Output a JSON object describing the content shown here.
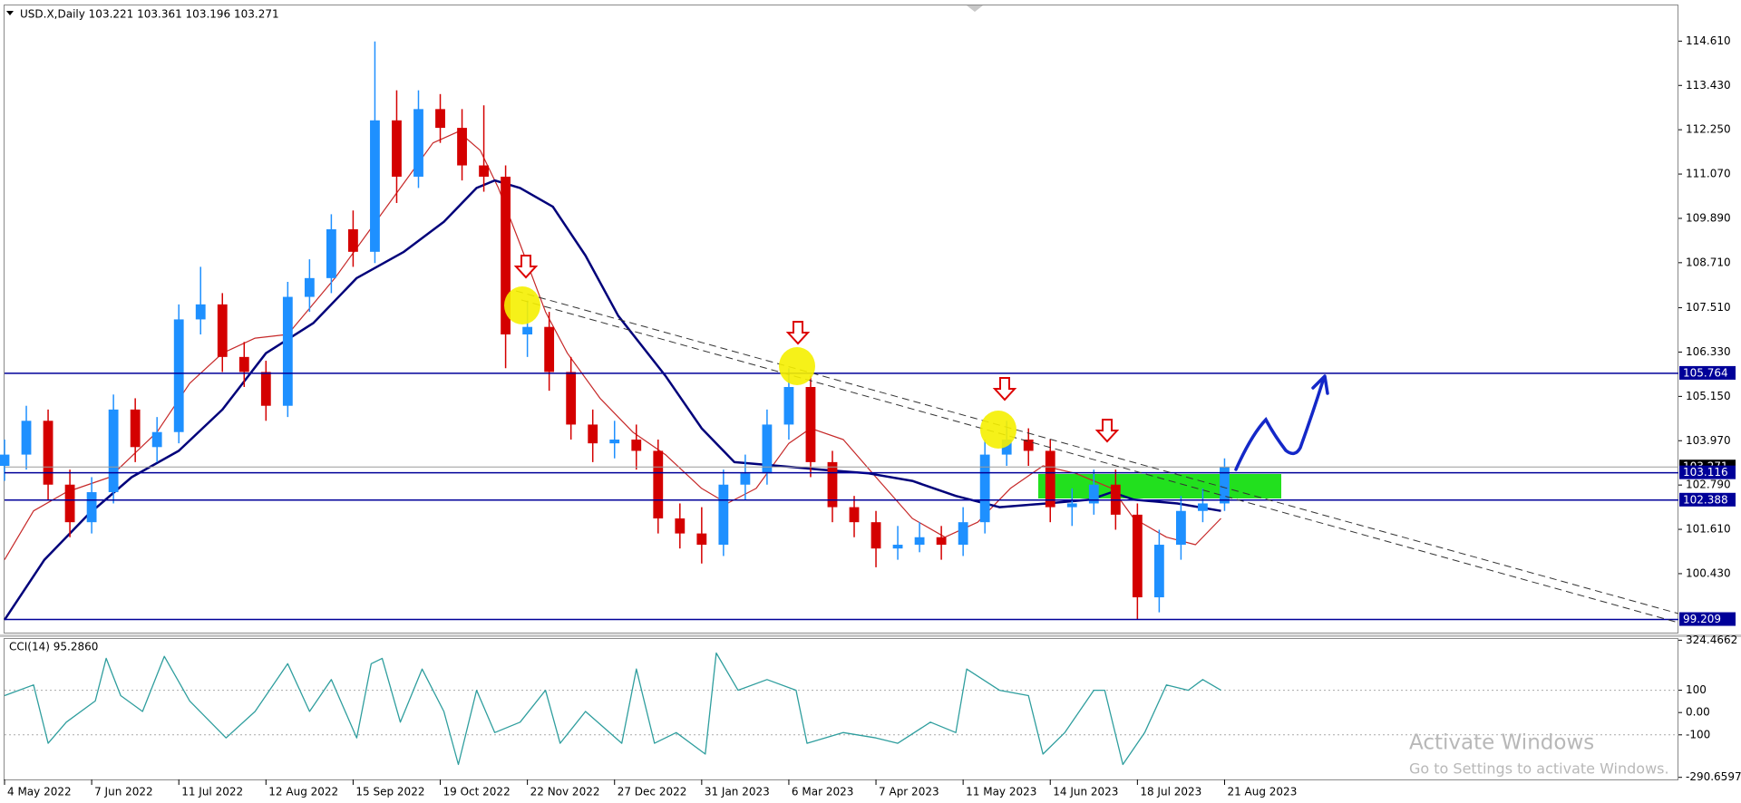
{
  "chart_data": [
    {
      "type": "candlestick",
      "title": "USD.X,Daily  103.221 103.361 103.196 103.271",
      "x": [
        0,
        6,
        12,
        18,
        24,
        30,
        36,
        42,
        48,
        54,
        60,
        66,
        72,
        78,
        84,
        90,
        96,
        102,
        108,
        114,
        120,
        126,
        132,
        138,
        144,
        150,
        156,
        162,
        168,
        174,
        180,
        186,
        192,
        198,
        204,
        210,
        216,
        222,
        228,
        234,
        240,
        246,
        252,
        258,
        264,
        270,
        276,
        282,
        288,
        294,
        300,
        306,
        312,
        318,
        324,
        330,
        336
      ],
      "open": [
        103.3,
        103.6,
        104.5,
        102.8,
        101.8,
        102.6,
        104.8,
        103.8,
        104.2,
        107.2,
        107.6,
        106.2,
        105.8,
        104.9,
        107.8,
        108.3,
        109.6,
        109,
        112.5,
        111,
        112.8,
        112.3,
        111.3,
        111,
        106.8,
        107,
        105.8,
        104.4,
        103.9,
        104,
        103.7,
        101.9,
        101.5,
        101.2,
        102.8,
        103.1,
        104.4,
        105.4,
        103.4,
        102.2,
        101.8,
        101.1,
        101.2,
        101.4,
        101.2,
        101.8,
        103.6,
        104,
        103.7,
        102.2,
        102.3,
        102.8,
        102,
        99.8,
        101.2,
        102.1,
        102.3
      ],
      "high": [
        104,
        104.9,
        104.8,
        103.2,
        103,
        105.2,
        105.1,
        104.6,
        107.6,
        108.6,
        107.9,
        106.6,
        106.1,
        108.2,
        108.8,
        110,
        110.1,
        114.6,
        113.3,
        113.3,
        113.2,
        112.8,
        112.9,
        111.3,
        107.7,
        107.4,
        106.2,
        104.8,
        104.5,
        104.4,
        104,
        102.3,
        102.2,
        103.2,
        103.6,
        104.8,
        105.9,
        105.7,
        103.7,
        102.5,
        102.1,
        101.7,
        101.8,
        101.7,
        102.2,
        104,
        104.5,
        104.3,
        104,
        102.7,
        103.2,
        103.2,
        102.3,
        101.6,
        102.5,
        102.7,
        103.5
      ],
      "low": [
        102.9,
        103.2,
        102.4,
        101.4,
        101.5,
        102.3,
        103.4,
        103.4,
        103.9,
        106.8,
        105.8,
        105.4,
        104.5,
        104.6,
        107.4,
        107.9,
        108.6,
        108.7,
        110.3,
        110.7,
        111.9,
        110.9,
        110.6,
        105.9,
        106.2,
        105.3,
        104,
        103.4,
        103.5,
        103.2,
        101.5,
        101.1,
        100.7,
        100.9,
        102.4,
        102.8,
        104,
        103,
        101.8,
        101.4,
        100.6,
        100.8,
        101,
        100.8,
        100.9,
        101.5,
        103.3,
        103.3,
        101.8,
        101.7,
        102,
        101.6,
        99.2,
        99.4,
        100.8,
        101.8,
        102.1
      ],
      "close": [
        103.6,
        104.5,
        102.8,
        101.8,
        102.6,
        104.8,
        103.8,
        104.2,
        107.2,
        107.6,
        106.2,
        105.8,
        104.9,
        107.8,
        108.3,
        109.6,
        109,
        112.5,
        111,
        112.8,
        112.3,
        111.3,
        111,
        106.8,
        107,
        105.8,
        104.4,
        103.9,
        104,
        103.7,
        101.9,
        101.5,
        101.2,
        102.8,
        103.1,
        104.4,
        105.4,
        103.4,
        102.2,
        101.8,
        101.1,
        101.2,
        101.4,
        101.2,
        101.8,
        103.6,
        104,
        103.7,
        102.2,
        102.3,
        102.8,
        102,
        99.8,
        101.2,
        102.1,
        102.3,
        103.27
      ],
      "up_color": "#1e90ff",
      "down_color": "#d40000",
      "series": [
        {
          "color": "#c62828",
          "x": [
            0,
            8,
            17,
            29,
            42,
            51,
            60,
            69,
            78,
            91,
            100,
            109,
            118,
            125,
            131,
            136,
            142,
            149,
            155,
            164,
            173,
            182,
            192,
            199,
            207,
            216,
            222,
            231,
            240,
            250,
            259,
            268,
            277,
            286,
            295,
            305,
            311,
            320,
            328,
            335
          ],
          "values": [
            100.8,
            102.1,
            102.6,
            103,
            104.2,
            105.5,
            106.3,
            106.7,
            106.8,
            108.3,
            109.5,
            110.7,
            111.9,
            112.2,
            111.7,
            110.7,
            109.2,
            107.4,
            106.3,
            105.1,
            104.2,
            103.6,
            102.7,
            102.3,
            102.7,
            103.9,
            104.3,
            104,
            103,
            101.9,
            101.4,
            101.8,
            102.7,
            103.3,
            103.1,
            102.7,
            101.9,
            101.4,
            101.2,
            101.9
          ]
        },
        {
          "color": "#00007a",
          "x": [
            0,
            11,
            23,
            35,
            48,
            60,
            72,
            85,
            97,
            110,
            121,
            130,
            135,
            142,
            151,
            160,
            169,
            182,
            192,
            201,
            213,
            225,
            238,
            250,
            262,
            274,
            287,
            299,
            305,
            311,
            323,
            335
          ],
          "values": [
            99.2,
            100.8,
            102,
            103,
            103.7,
            104.8,
            106.3,
            107.1,
            108.3,
            109,
            109.8,
            110.7,
            110.9,
            110.7,
            110.2,
            108.9,
            107.3,
            105.7,
            104.3,
            103.4,
            103.3,
            103.2,
            103.1,
            102.9,
            102.5,
            102.2,
            102.3,
            102.4,
            102.6,
            102.4,
            102.3,
            102.1
          ]
        }
      ],
      "levels": [
        105.764,
        103.116,
        102.388,
        99.209
      ],
      "level_color": "#000099",
      "last_price": 103.271,
      "last_price_color": "#9a9a9a",
      "xlim": [
        0,
        461
      ],
      "xticks": [
        {
          "value": 0,
          "label": "4 May 2022"
        },
        {
          "value": 24,
          "label": "7 Jun 2022"
        },
        {
          "value": 48,
          "label": "11 Jul 2022"
        },
        {
          "value": 72,
          "label": "12 Aug 2022"
        },
        {
          "value": 96,
          "label": "15 Sep 2022"
        },
        {
          "value": 120,
          "label": "19 Oct 2022"
        },
        {
          "value": 144,
          "label": "22 Nov 2022"
        },
        {
          "value": 168,
          "label": "27 Dec 2022"
        },
        {
          "value": 192,
          "label": "31 Jan 2023"
        },
        {
          "value": 216,
          "label": "6 Mar 2023"
        },
        {
          "value": 240,
          "label": "7 Apr 2023"
        },
        {
          "value": 264,
          "label": "11 May 2023"
        },
        {
          "value": 288,
          "label": "14 Jun 2023"
        },
        {
          "value": 312,
          "label": "18 Jul 2023"
        },
        {
          "value": 336,
          "label": "21 Aug 2023"
        }
      ],
      "ylim": [
        98.86,
        115.56
      ],
      "yticks": [
        {
          "value": 114.61,
          "label": "114.610"
        },
        {
          "value": 113.43,
          "label": "113.430"
        },
        {
          "value": 112.25,
          "label": "112.250"
        },
        {
          "value": 111.07,
          "label": "111.070"
        },
        {
          "value": 109.89,
          "label": "109.890"
        },
        {
          "value": 108.71,
          "label": "108.710"
        },
        {
          "value": 107.51,
          "label": "107.510"
        },
        {
          "value": 106.33,
          "label": "106.330"
        },
        {
          "value": 105.15,
          "label": "105.150"
        },
        {
          "value": 103.97,
          "label": "103.970"
        },
        {
          "value": 102.79,
          "label": "102.790"
        },
        {
          "value": 101.61,
          "label": "101.610"
        },
        {
          "value": 100.43,
          "label": "100.430"
        }
      ]
    },
    {
      "type": "line",
      "title": "CCI(14) 95.2860",
      "x": [
        0,
        8,
        12,
        17,
        25,
        28,
        32,
        38,
        44,
        51,
        61,
        69,
        78,
        84,
        90,
        97,
        101,
        104,
        109,
        115,
        121,
        125,
        130,
        135,
        142,
        149,
        153,
        160,
        170,
        174,
        179,
        185,
        193,
        196,
        202,
        210,
        218,
        221,
        231,
        240,
        246,
        255,
        262,
        265,
        274,
        282,
        286,
        292,
        300,
        303,
        308,
        314,
        320,
        326,
        330,
        335
      ],
      "values": [
        76,
        124,
        -138,
        -43,
        52,
        243,
        76,
        5,
        252,
        52,
        -114,
        5,
        219,
        5,
        148,
        -114,
        219,
        243,
        -43,
        195,
        5,
        -233,
        100,
        -90,
        -43,
        100,
        -138,
        5,
        -138,
        195,
        -138,
        -90,
        -186,
        267,
        100,
        148,
        100,
        -138,
        -90,
        -114,
        -138,
        -43,
        -90,
        195,
        100,
        76,
        -186,
        -90,
        100,
        100,
        -233,
        -90,
        124,
        100,
        148,
        100
      ],
      "color": "#2f9e9e",
      "xlim": [
        0,
        461
      ],
      "ylim": [
        -300,
        330
      ],
      "yticks": [
        {
          "value": 324.4662,
          "label": "324.4662"
        },
        100,
        {
          "value": 0,
          "label": "0.00"
        },
        -100,
        {
          "value": -290.6597,
          "label": "-290.6597"
        }
      ],
      "reference_lines": [
        100,
        -100
      ]
    }
  ],
  "watermark": [
    "Activate Windows",
    "Go to Settings to activate Windows."
  ]
}
